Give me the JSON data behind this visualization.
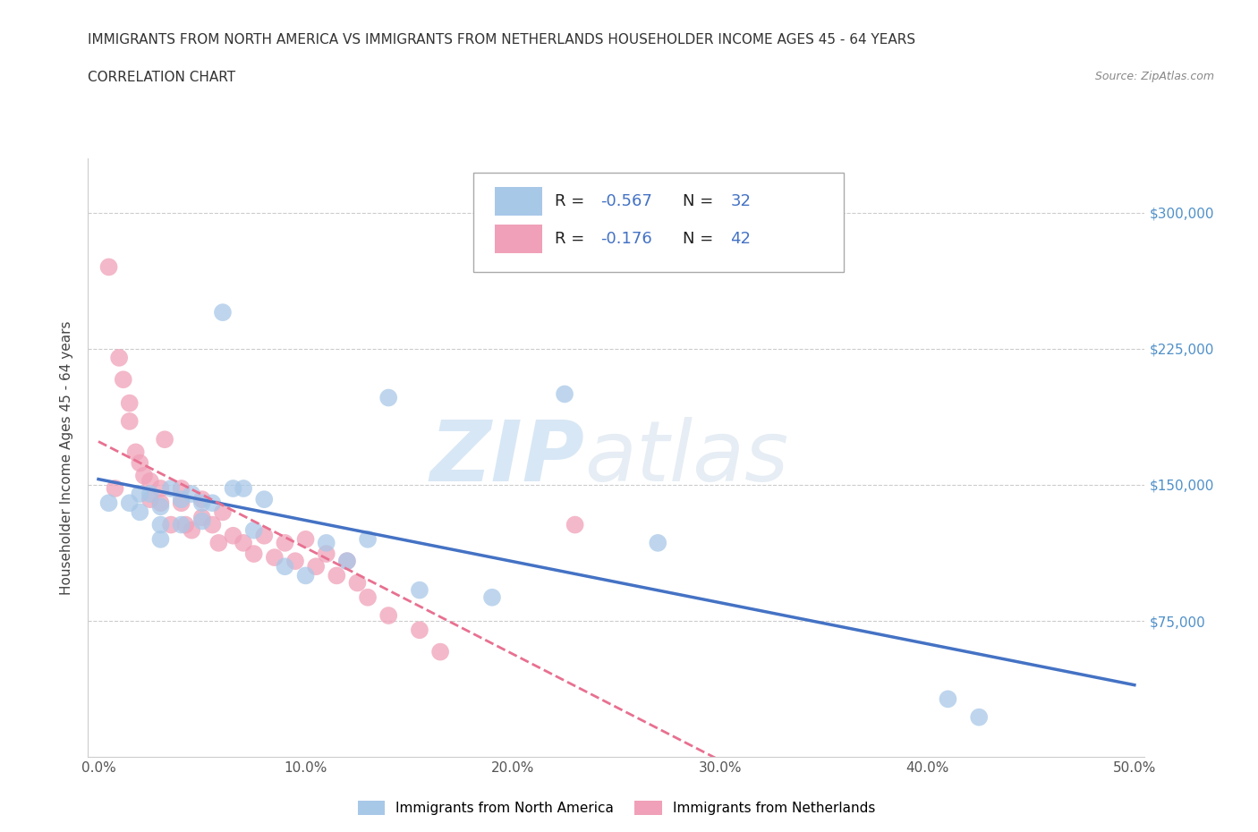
{
  "title_line1": "IMMIGRANTS FROM NORTH AMERICA VS IMMIGRANTS FROM NETHERLANDS HOUSEHOLDER INCOME AGES 45 - 64 YEARS",
  "title_line2": "CORRELATION CHART",
  "source_text": "Source: ZipAtlas.com",
  "ylabel": "Householder Income Ages 45 - 64 years",
  "watermark_zip": "ZIP",
  "watermark_atlas": "atlas",
  "legend_label1": "Immigrants from North America",
  "legend_label2": "Immigrants from Netherlands",
  "r1": -0.567,
  "n1": 32,
  "r2": -0.176,
  "n2": 42,
  "color_blue": "#a8c8e8",
  "color_pink": "#f0a0b8",
  "line_color_blue": "#4472c4",
  "line_color_pink": "#e87090",
  "xlim_min": -0.005,
  "xlim_max": 0.505,
  "ylim_min": 0,
  "ylim_max": 330000,
  "xtick_labels": [
    "0.0%",
    "10.0%",
    "20.0%",
    "30.0%",
    "40.0%",
    "50.0%"
  ],
  "xtick_values": [
    0.0,
    0.1,
    0.2,
    0.3,
    0.4,
    0.5
  ],
  "ytick_labels": [
    "$75,000",
    "$150,000",
    "$225,000",
    "$300,000"
  ],
  "ytick_values": [
    75000,
    150000,
    225000,
    300000
  ],
  "north_america_x": [
    0.005,
    0.015,
    0.02,
    0.02,
    0.025,
    0.03,
    0.03,
    0.03,
    0.035,
    0.04,
    0.04,
    0.045,
    0.05,
    0.05,
    0.055,
    0.06,
    0.065,
    0.07,
    0.075,
    0.08,
    0.09,
    0.1,
    0.11,
    0.12,
    0.13,
    0.14,
    0.155,
    0.19,
    0.225,
    0.27,
    0.41,
    0.425
  ],
  "north_america_y": [
    140000,
    140000,
    145000,
    135000,
    145000,
    138000,
    128000,
    120000,
    148000,
    142000,
    128000,
    145000,
    140000,
    130000,
    140000,
    245000,
    148000,
    148000,
    125000,
    142000,
    105000,
    100000,
    118000,
    108000,
    120000,
    198000,
    92000,
    88000,
    200000,
    118000,
    32000,
    22000
  ],
  "netherlands_x": [
    0.005,
    0.008,
    0.01,
    0.012,
    0.015,
    0.015,
    0.018,
    0.02,
    0.022,
    0.025,
    0.025,
    0.03,
    0.03,
    0.032,
    0.035,
    0.04,
    0.04,
    0.042,
    0.045,
    0.05,
    0.05,
    0.055,
    0.058,
    0.06,
    0.065,
    0.07,
    0.075,
    0.08,
    0.085,
    0.09,
    0.095,
    0.1,
    0.105,
    0.11,
    0.115,
    0.12,
    0.125,
    0.13,
    0.14,
    0.155,
    0.165,
    0.23
  ],
  "netherlands_y": [
    270000,
    148000,
    220000,
    208000,
    195000,
    185000,
    168000,
    162000,
    155000,
    152000,
    142000,
    148000,
    140000,
    175000,
    128000,
    148000,
    140000,
    128000,
    125000,
    142000,
    132000,
    128000,
    118000,
    135000,
    122000,
    118000,
    112000,
    122000,
    110000,
    118000,
    108000,
    120000,
    105000,
    112000,
    100000,
    108000,
    96000,
    88000,
    78000,
    70000,
    58000,
    128000
  ]
}
